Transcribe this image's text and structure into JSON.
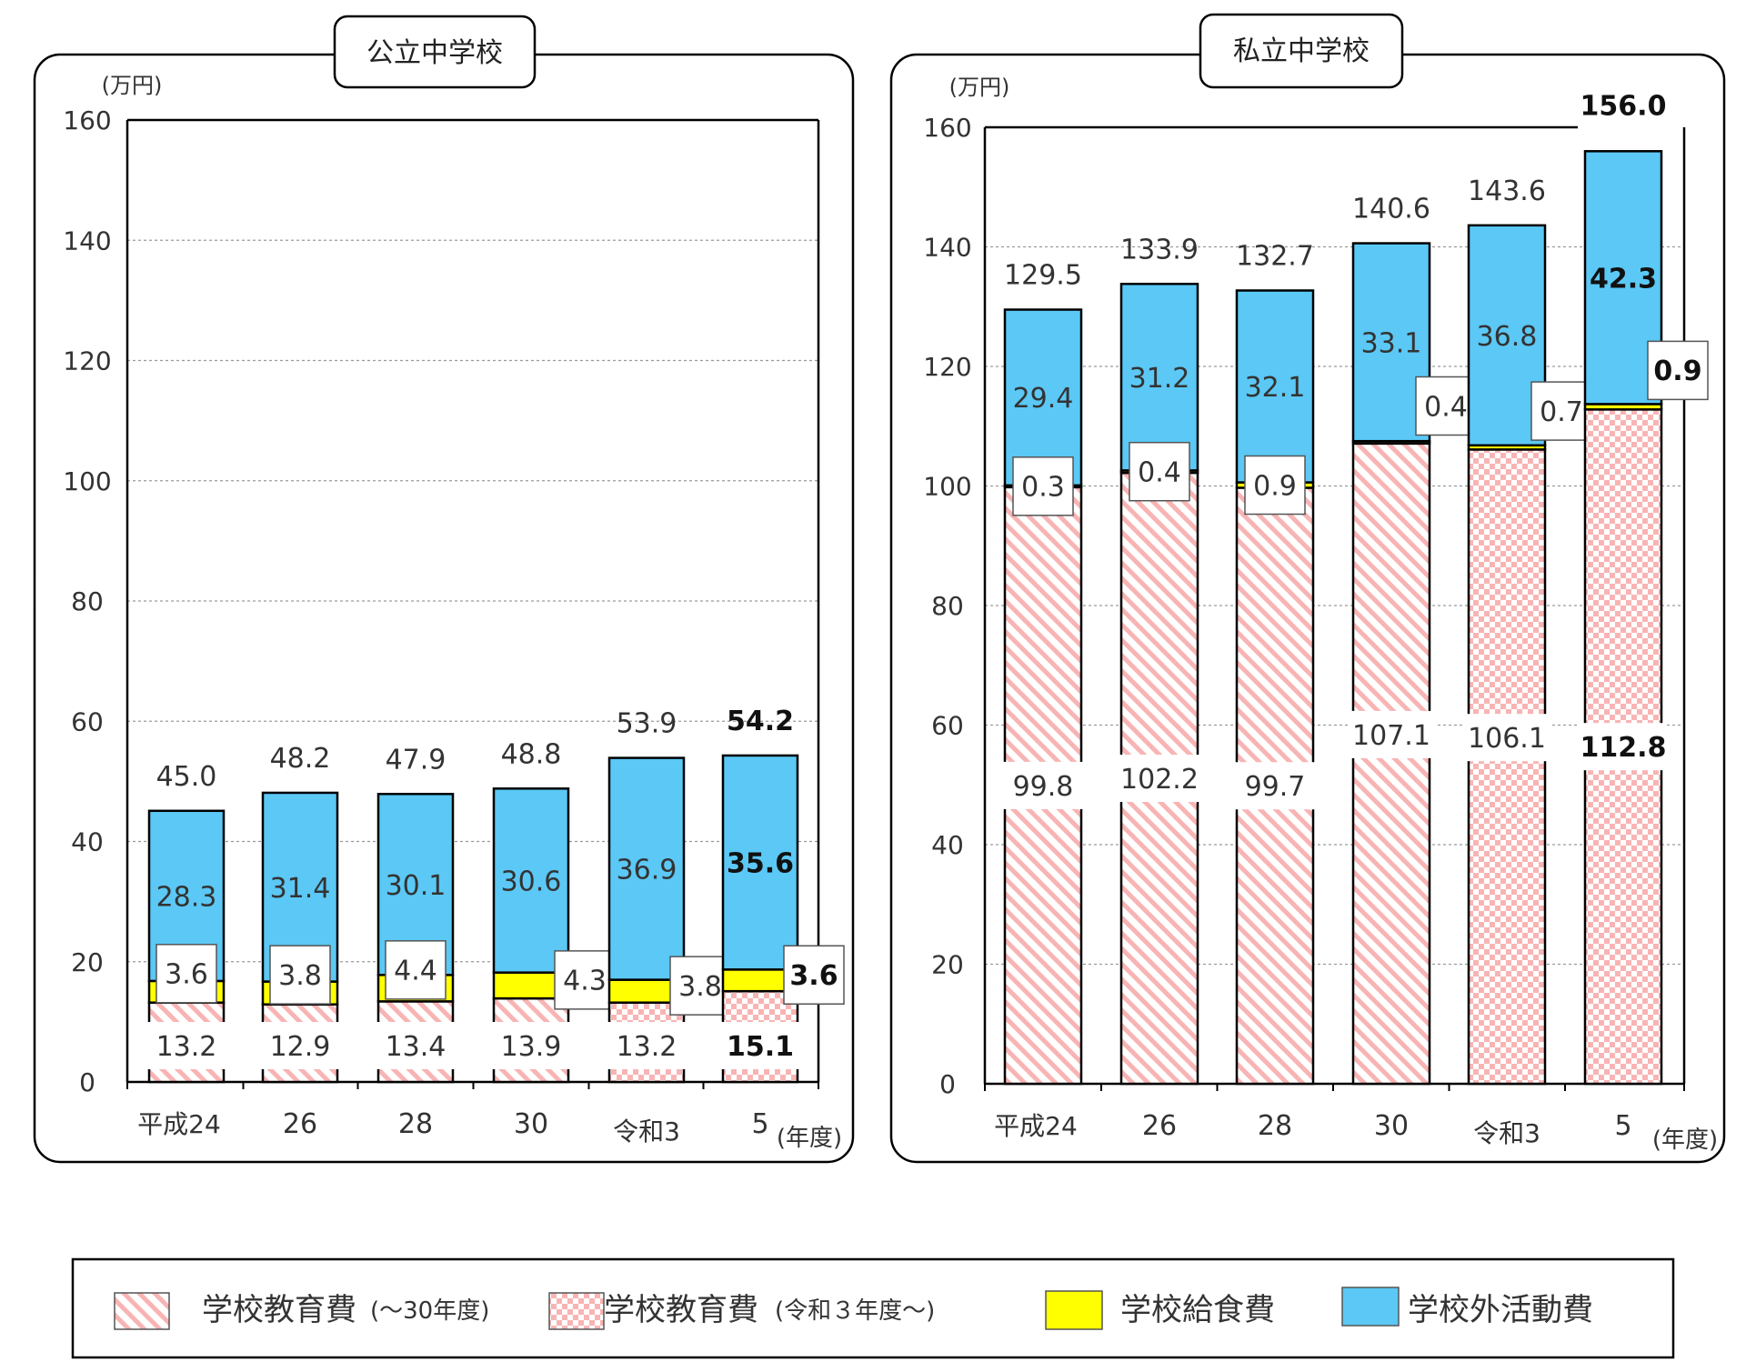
{
  "unit": "(万円)",
  "year_unit": "(年度)",
  "legend": [
    {
      "key": "edu_old",
      "label": "学校教育費",
      "sub": "(〜30年度)"
    },
    {
      "key": "edu_new",
      "label": "学校教育費",
      "sub": "(令和３年度〜)"
    },
    {
      "key": "lunch",
      "label": "学校給食費",
      "sub": ""
    },
    {
      "key": "outside",
      "label": "学校外活動費",
      "sub": ""
    }
  ],
  "colors": {
    "outside": "#5BC8F5",
    "lunch": "#FFFF00",
    "edu_pattern": "#F8B4B4",
    "frame": "#000000",
    "grid": "#9a9a9a"
  },
  "chart_data": [
    {
      "type": "bar",
      "stacked": true,
      "title": "公立中学校",
      "ylabel": "(万円)",
      "xlabel": "(年度)",
      "ylim": [
        0,
        160
      ],
      "yticks": [
        0,
        20,
        40,
        60,
        80,
        100,
        120,
        140,
        160
      ],
      "categories": [
        "平成24",
        "26",
        "28",
        "30",
        "令和3",
        "5"
      ],
      "edu_pattern": [
        "old",
        "old",
        "old",
        "old",
        "new",
        "new"
      ],
      "series": [
        {
          "name": "学校教育費",
          "values": [
            13.2,
            12.9,
            13.4,
            13.9,
            13.2,
            15.1
          ]
        },
        {
          "name": "学校給食費",
          "values": [
            3.6,
            3.8,
            4.4,
            4.3,
            3.8,
            3.6
          ]
        },
        {
          "name": "学校外活動費",
          "values": [
            28.3,
            31.4,
            30.1,
            30.6,
            36.9,
            35.6
          ]
        }
      ],
      "totals": [
        45.0,
        48.2,
        47.9,
        48.8,
        53.9,
        54.2
      ],
      "labels": {
        "edu": [
          "13.2",
          "12.9",
          "13.4",
          "13.9",
          "13.2",
          "15.1"
        ],
        "lunch": [
          "3.6",
          "3.8",
          "4.4",
          "4.3",
          "3.8",
          "3.6"
        ],
        "outside": [
          "28.3",
          "31.4",
          "30.1",
          "30.6",
          "36.9",
          "35.6"
        ],
        "total": [
          "45.0",
          "48.2",
          "47.9",
          "48.8",
          "53.9",
          "54.2"
        ]
      }
    },
    {
      "type": "bar",
      "stacked": true,
      "title": "私立中学校",
      "ylabel": "(万円)",
      "xlabel": "(年度)",
      "ylim": [
        0,
        160
      ],
      "yticks": [
        0,
        20,
        40,
        60,
        80,
        100,
        120,
        140,
        160
      ],
      "categories": [
        "平成24",
        "26",
        "28",
        "30",
        "令和3",
        "5"
      ],
      "edu_pattern": [
        "old",
        "old",
        "old",
        "old",
        "new",
        "new"
      ],
      "series": [
        {
          "name": "学校教育費",
          "values": [
            99.8,
            102.2,
            99.7,
            107.1,
            106.1,
            112.8
          ]
        },
        {
          "name": "学校給食費",
          "values": [
            0.3,
            0.4,
            0.9,
            0.4,
            0.7,
            0.9
          ]
        },
        {
          "name": "学校外活動費",
          "values": [
            29.4,
            31.2,
            32.1,
            33.1,
            36.8,
            42.3
          ]
        }
      ],
      "totals": [
        129.5,
        133.9,
        132.7,
        140.6,
        143.6,
        156.0
      ],
      "labels": {
        "edu": [
          "99.8",
          "102.2",
          "99.7",
          "107.1",
          "106.1",
          "112.8"
        ],
        "lunch": [
          "0.3",
          "0.4",
          "0.9",
          "0.4",
          "0.7",
          "0.9"
        ],
        "outside": [
          "29.4",
          "31.2",
          "32.1",
          "33.1",
          "36.8",
          "42.3"
        ],
        "total": [
          "129.5",
          "133.9",
          "132.7",
          "140.6",
          "143.6",
          "156.0"
        ]
      }
    }
  ]
}
